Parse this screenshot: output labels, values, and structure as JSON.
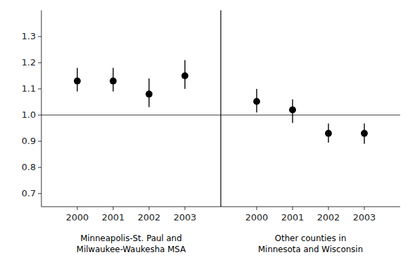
{
  "chart_data": {
    "type": "scatter",
    "categories": [
      "2000",
      "2001",
      "2002",
      "2003",
      null,
      "2000",
      "2001",
      "2002",
      "2003"
    ],
    "values": [
      1.13,
      1.13,
      1.08,
      1.15,
      null,
      1.052,
      1.02,
      0.93,
      0.93
    ],
    "ci_low": [
      1.09,
      1.09,
      1.03,
      1.1,
      null,
      1.01,
      0.97,
      0.895,
      0.89
    ],
    "ci_high": [
      1.18,
      1.18,
      1.14,
      1.21,
      null,
      1.1,
      1.06,
      0.968,
      0.968
    ],
    "annotations": [
      "Minneapolis-St. Paul and\nMilwaukee-Waukesha MSA",
      "Other counties in\nMinnesota and Wisconsin"
    ],
    "reference_y": 1.0,
    "ylim": [
      0.65,
      1.4
    ],
    "yticks": [
      0.7,
      0.8,
      0.9,
      {
        "value": 1.0,
        "label": "1.0"
      },
      1.1,
      1.2,
      1.3
    ],
    "color": "#000000",
    "marker": "circle",
    "grid": false
  }
}
